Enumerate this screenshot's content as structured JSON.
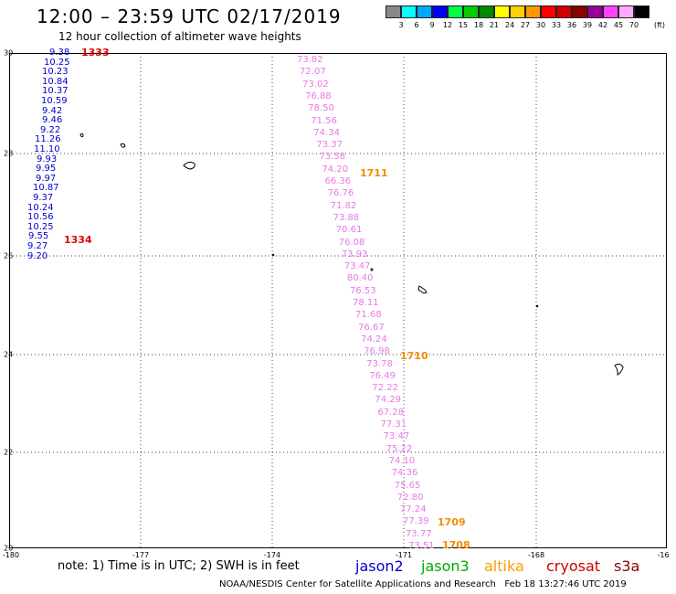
{
  "title": "12:00 – 23:59 UTC 02/17/2019",
  "subtitle": "12 hour collection of altimeter wave heights",
  "legend": {
    "unit": "(ft)",
    "bins": [
      {
        "label": "3",
        "color": "#888888"
      },
      {
        "label": "6",
        "color": "#00ffff"
      },
      {
        "label": "9",
        "color": "#00a8ff"
      },
      {
        "label": "12",
        "color": "#0000ff"
      },
      {
        "label": "15",
        "color": "#00ff44"
      },
      {
        "label": "18",
        "color": "#00cc00"
      },
      {
        "label": "21",
        "color": "#008800"
      },
      {
        "label": "24",
        "color": "#ffff00"
      },
      {
        "label": "27",
        "color": "#ffd000"
      },
      {
        "label": "30",
        "color": "#ff9900"
      },
      {
        "label": "33",
        "color": "#ff0000"
      },
      {
        "label": "36",
        "color": "#cc0000"
      },
      {
        "label": "39",
        "color": "#8b0000"
      },
      {
        "label": "42",
        "color": "#990099"
      },
      {
        "label": "45",
        "color": "#ff44ff"
      },
      {
        "label": "70",
        "color": "#ffaaff"
      },
      {
        "label": "",
        "color": "#000000"
      }
    ]
  },
  "axes": {
    "lat_ticks": [
      "30",
      "28",
      "26",
      "24",
      "22",
      "20"
    ],
    "lon_ticks": [
      "-180",
      "-177",
      "-174",
      "-171",
      "-168",
      "-16"
    ]
  },
  "jason2_track": [
    "9.38",
    "10.25",
    "10.23",
    "10.84",
    "10.37",
    "10.59",
    "9.42",
    "9.46",
    "9.22",
    "11.26",
    "11.10",
    "9.93",
    "9.95",
    "9.97",
    "10.87",
    "9.37",
    "10.24",
    "10.56",
    "10.25",
    "9.55",
    "9.27",
    "9.20"
  ],
  "s3a_track": [
    "73.82",
    "72.07",
    "73.02",
    "76.88",
    "78.50",
    "71.56",
    "74.34",
    "73.37",
    "73.58",
    "74.20",
    "66.36",
    "76.76",
    "71.82",
    "73.88",
    "70.61",
    "76.08",
    "73.93",
    "73.47",
    "80.40",
    "76.53",
    "78.11",
    "71.68",
    "76.67",
    "74.24",
    "76.98",
    "73.78",
    "76.49",
    "72.22",
    "74.29",
    "67.28",
    "77.31",
    "73.47",
    "75.22",
    "74.10",
    "74.36",
    "75.65",
    "72.80",
    "77.24",
    "77.39",
    "73.77",
    "73.51"
  ],
  "pass_times": {
    "jason2": [
      "1333",
      "1334"
    ],
    "s3a": [
      "1711",
      "1710",
      "1709",
      "1708"
    ]
  },
  "note": "note: 1) Time is in UTC; 2) SWH is in feet",
  "satellites": [
    {
      "name": "jason2",
      "color": "#0000cc"
    },
    {
      "name": "jason3",
      "color": "#00aa00"
    },
    {
      "name": "altika",
      "color": "#ff9900"
    },
    {
      "name": "cryosat",
      "color": "#cc0000"
    },
    {
      "name": "s3a",
      "color": "#8b0000"
    }
  ],
  "credit": "NOAA/NESDIS Center for Satellite Applications and Research",
  "timestamp": "Feb 18 13:27:46 UTC 2019"
}
